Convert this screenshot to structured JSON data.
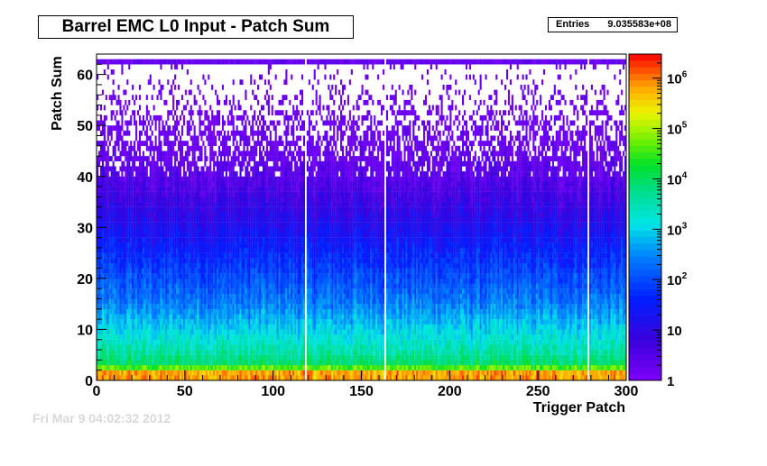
{
  "chart_data": {
    "type": "heatmap",
    "title": "Barrel EMC L0 Input - Patch Sum",
    "stats": {
      "label": "Entries",
      "value": "9.035583e+08"
    },
    "xlabel": "Trigger Patch",
    "ylabel": "Patch Sum",
    "xlim": [
      0,
      300
    ],
    "ylim": [
      0,
      64
    ],
    "x_ticks": [
      0,
      50,
      100,
      150,
      200,
      250,
      300
    ],
    "y_ticks": [
      0,
      10,
      20,
      30,
      40,
      50,
      60
    ],
    "z_scale": "log",
    "z_range": [
      1,
      3000000
    ],
    "z_ticks": [
      {
        "value": 1,
        "base": "1",
        "exp": ""
      },
      {
        "value": 10,
        "base": "10",
        "exp": ""
      },
      {
        "value": 100,
        "base": "10",
        "exp": "2"
      },
      {
        "value": 1000,
        "base": "10",
        "exp": "3"
      },
      {
        "value": 10000,
        "base": "10",
        "exp": "4"
      },
      {
        "value": 100000,
        "base": "10",
        "exp": "5"
      },
      {
        "value": 1000000,
        "base": "10",
        "exp": "6"
      }
    ],
    "grid": false,
    "gap_columns": [
      118,
      163,
      278
    ],
    "z_profile": [
      {
        "y": 0,
        "log10_counts": 5.3
      },
      {
        "y": 1,
        "log10_counts": 6.4
      },
      {
        "y": 3,
        "log10_counts": 4.0
      },
      {
        "y": 6,
        "log10_counts": 3.5
      },
      {
        "y": 10,
        "log10_counts": 3.0
      },
      {
        "y": 15,
        "log10_counts": 2.4
      },
      {
        "y": 20,
        "log10_counts": 2.0
      },
      {
        "y": 25,
        "log10_counts": 1.6
      },
      {
        "y": 30,
        "log10_counts": 1.2
      },
      {
        "y": 35,
        "log10_counts": 0.8
      },
      {
        "y": 40,
        "log10_counts": 0.45
      },
      {
        "y": 45,
        "log10_counts": 0.15
      },
      {
        "y": 50,
        "log10_counts": 0.0
      }
    ],
    "overflow_row": {
      "y": 62.5,
      "log10_counts": 0.1
    }
  },
  "footer": {
    "text": "Fri Mar  9 04:02:32 2012"
  }
}
